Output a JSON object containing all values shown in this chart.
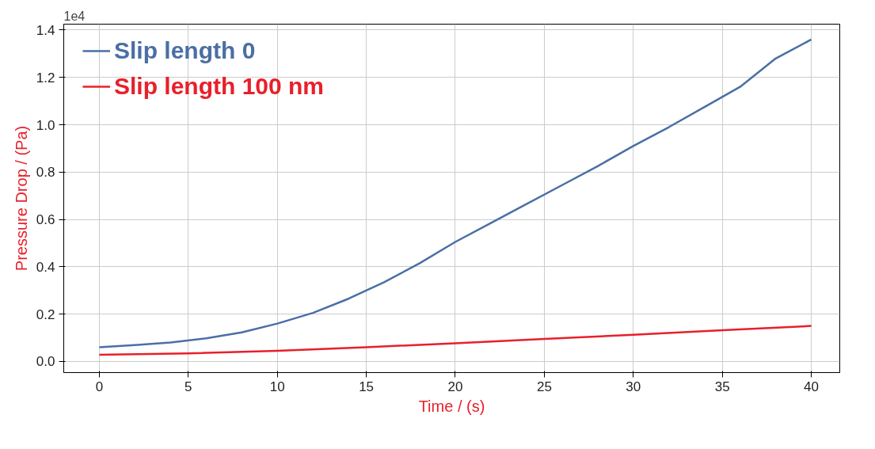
{
  "chart_data": {
    "type": "line",
    "xlabel": "Time / (s)",
    "ylabel": "Pressure Drop / (Pa)",
    "annotations": [
      "1e4"
    ],
    "series": [
      {
        "name": "Slip length 0",
        "color": "#4a6fa5",
        "x": [
          0,
          2,
          4,
          6,
          8,
          10,
          12,
          14,
          16,
          18,
          20,
          22,
          24,
          26,
          28,
          30,
          32,
          34,
          36,
          38,
          40
        ],
        "values": [
          0.06,
          0.069,
          0.08,
          0.098,
          0.123,
          0.16,
          0.205,
          0.265,
          0.335,
          0.415,
          0.505,
          0.585,
          0.665,
          0.745,
          0.825,
          0.91,
          0.99,
          1.075,
          1.16,
          1.28,
          1.36
        ]
      },
      {
        "name": "Slip length 100 nm",
        "color": "#e8202a",
        "x": [
          0,
          5,
          10,
          15,
          20,
          25,
          30,
          35,
          40
        ],
        "values": [
          0.028,
          0.034,
          0.045,
          0.06,
          0.077,
          0.095,
          0.113,
          0.132,
          0.15
        ]
      }
    ],
    "xlim": [
      -2,
      41.6
    ],
    "ylim": [
      -0.047,
      1.425
    ],
    "xticks": [
      0,
      5,
      10,
      15,
      20,
      25,
      30,
      35,
      40
    ],
    "yticks": [
      {
        "value": 0,
        "label": "0.0"
      },
      0.2,
      0.4,
      0.6,
      0.8,
      {
        "value": 1,
        "label": "1.0"
      },
      1.2,
      1.4
    ],
    "grid": true,
    "legend": "top left",
    "line_style": "solid",
    "marker": "none"
  }
}
